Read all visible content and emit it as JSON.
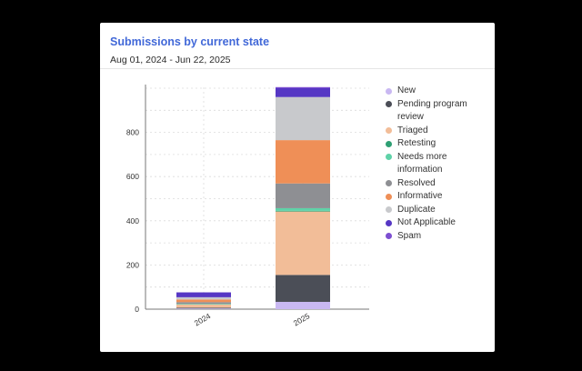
{
  "header": {
    "title": "Submissions by current state",
    "date_range": "Aug 01, 2024 - Jun 22, 2025"
  },
  "chart_data": {
    "type": "bar",
    "stacked": true,
    "categories": [
      "2024",
      "2025"
    ],
    "yticks": [
      0,
      200,
      400,
      600,
      800
    ],
    "ylim": [
      0,
      1000
    ],
    "grid": true,
    "legend_position": "right",
    "series": [
      {
        "name": "New",
        "color": "#c9b8f2",
        "values": [
          3,
          33
        ]
      },
      {
        "name": "Pending program review",
        "color": "#4b4e57",
        "values": [
          4,
          122
        ]
      },
      {
        "name": "Triaged",
        "color": "#f2bd98",
        "values": [
          14,
          287
        ]
      },
      {
        "name": "Retesting",
        "color": "#2e9f73",
        "values": [
          1,
          3
        ]
      },
      {
        "name": "Needs more information",
        "color": "#5fd2a8",
        "values": [
          2,
          12
        ]
      },
      {
        "name": "Resolved",
        "color": "#8e8f93",
        "values": [
          8,
          112
        ]
      },
      {
        "name": "Informative",
        "color": "#ef8f57",
        "values": [
          12,
          196
        ]
      },
      {
        "name": "Duplicate",
        "color": "#c8c9cc",
        "values": [
          10,
          195
        ]
      },
      {
        "name": "Not Applicable",
        "color": "#5637c4",
        "values": [
          22,
          40
        ]
      },
      {
        "name": "Spam",
        "color": "#7d4fd1",
        "values": [
          0,
          5
        ]
      }
    ]
  }
}
